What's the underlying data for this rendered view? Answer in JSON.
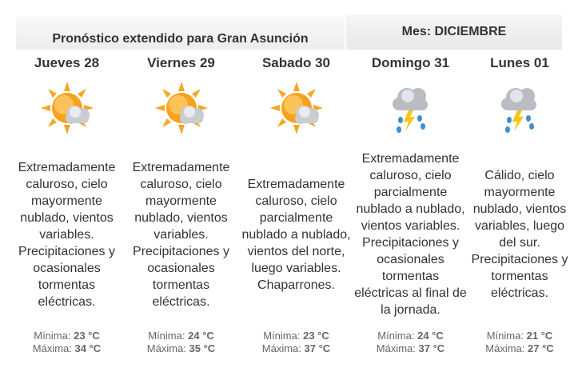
{
  "header": {
    "title": "Pronóstico extendido para Gran Asunción",
    "month": "Mes: DICIEMBRE"
  },
  "days": [
    {
      "name": "Jueves 28",
      "description": "Extremadamente caluroso, cielo mayormente nublado, vientos variables. Precipitaciones y ocasionales tormentas eléctricas.",
      "min_label": "Mínima:",
      "min": "23 °C",
      "max_label": "Máxima:",
      "max": "34 °C"
    },
    {
      "name": "Viernes 29",
      "description": "Extremadamente caluroso, cielo mayormente nublado, vientos variables. Precipitaciones y ocasionales tormentas eléctricas.",
      "min_label": "Mínima:",
      "min": "24 °C",
      "max_label": "Máxima:",
      "max": "35 °C"
    },
    {
      "name": "Sabado 30",
      "description": "Extremadamente caluroso, cielo parcialmente nublado a nublado, vientos del norte, luego variables. Chaparrones.",
      "min_label": "Mínima:",
      "min": "23 °C",
      "max_label": "Máxima:",
      "max": "37 °C"
    },
    {
      "name": "Domingo 31",
      "description": "Extremadamente caluroso, cielo parcialmente nublado a nublado, vientos variables. Precipitaciones y ocasionales tormentas eléctricas al final de la jornada.",
      "min_label": "Mínima:",
      "min": "24 °C",
      "max_label": "Máxima:",
      "max": "37 °C"
    },
    {
      "name": "Lunes 01",
      "description": "Cálido, cielo mayormente nublado, vientos variables, luego del sur. Precipitaciones y tormentas eléctricas.",
      "min_label": "Mínima:",
      "min": "21 °C",
      "max_label": "Máxima:",
      "max": "27 °C"
    }
  ]
}
